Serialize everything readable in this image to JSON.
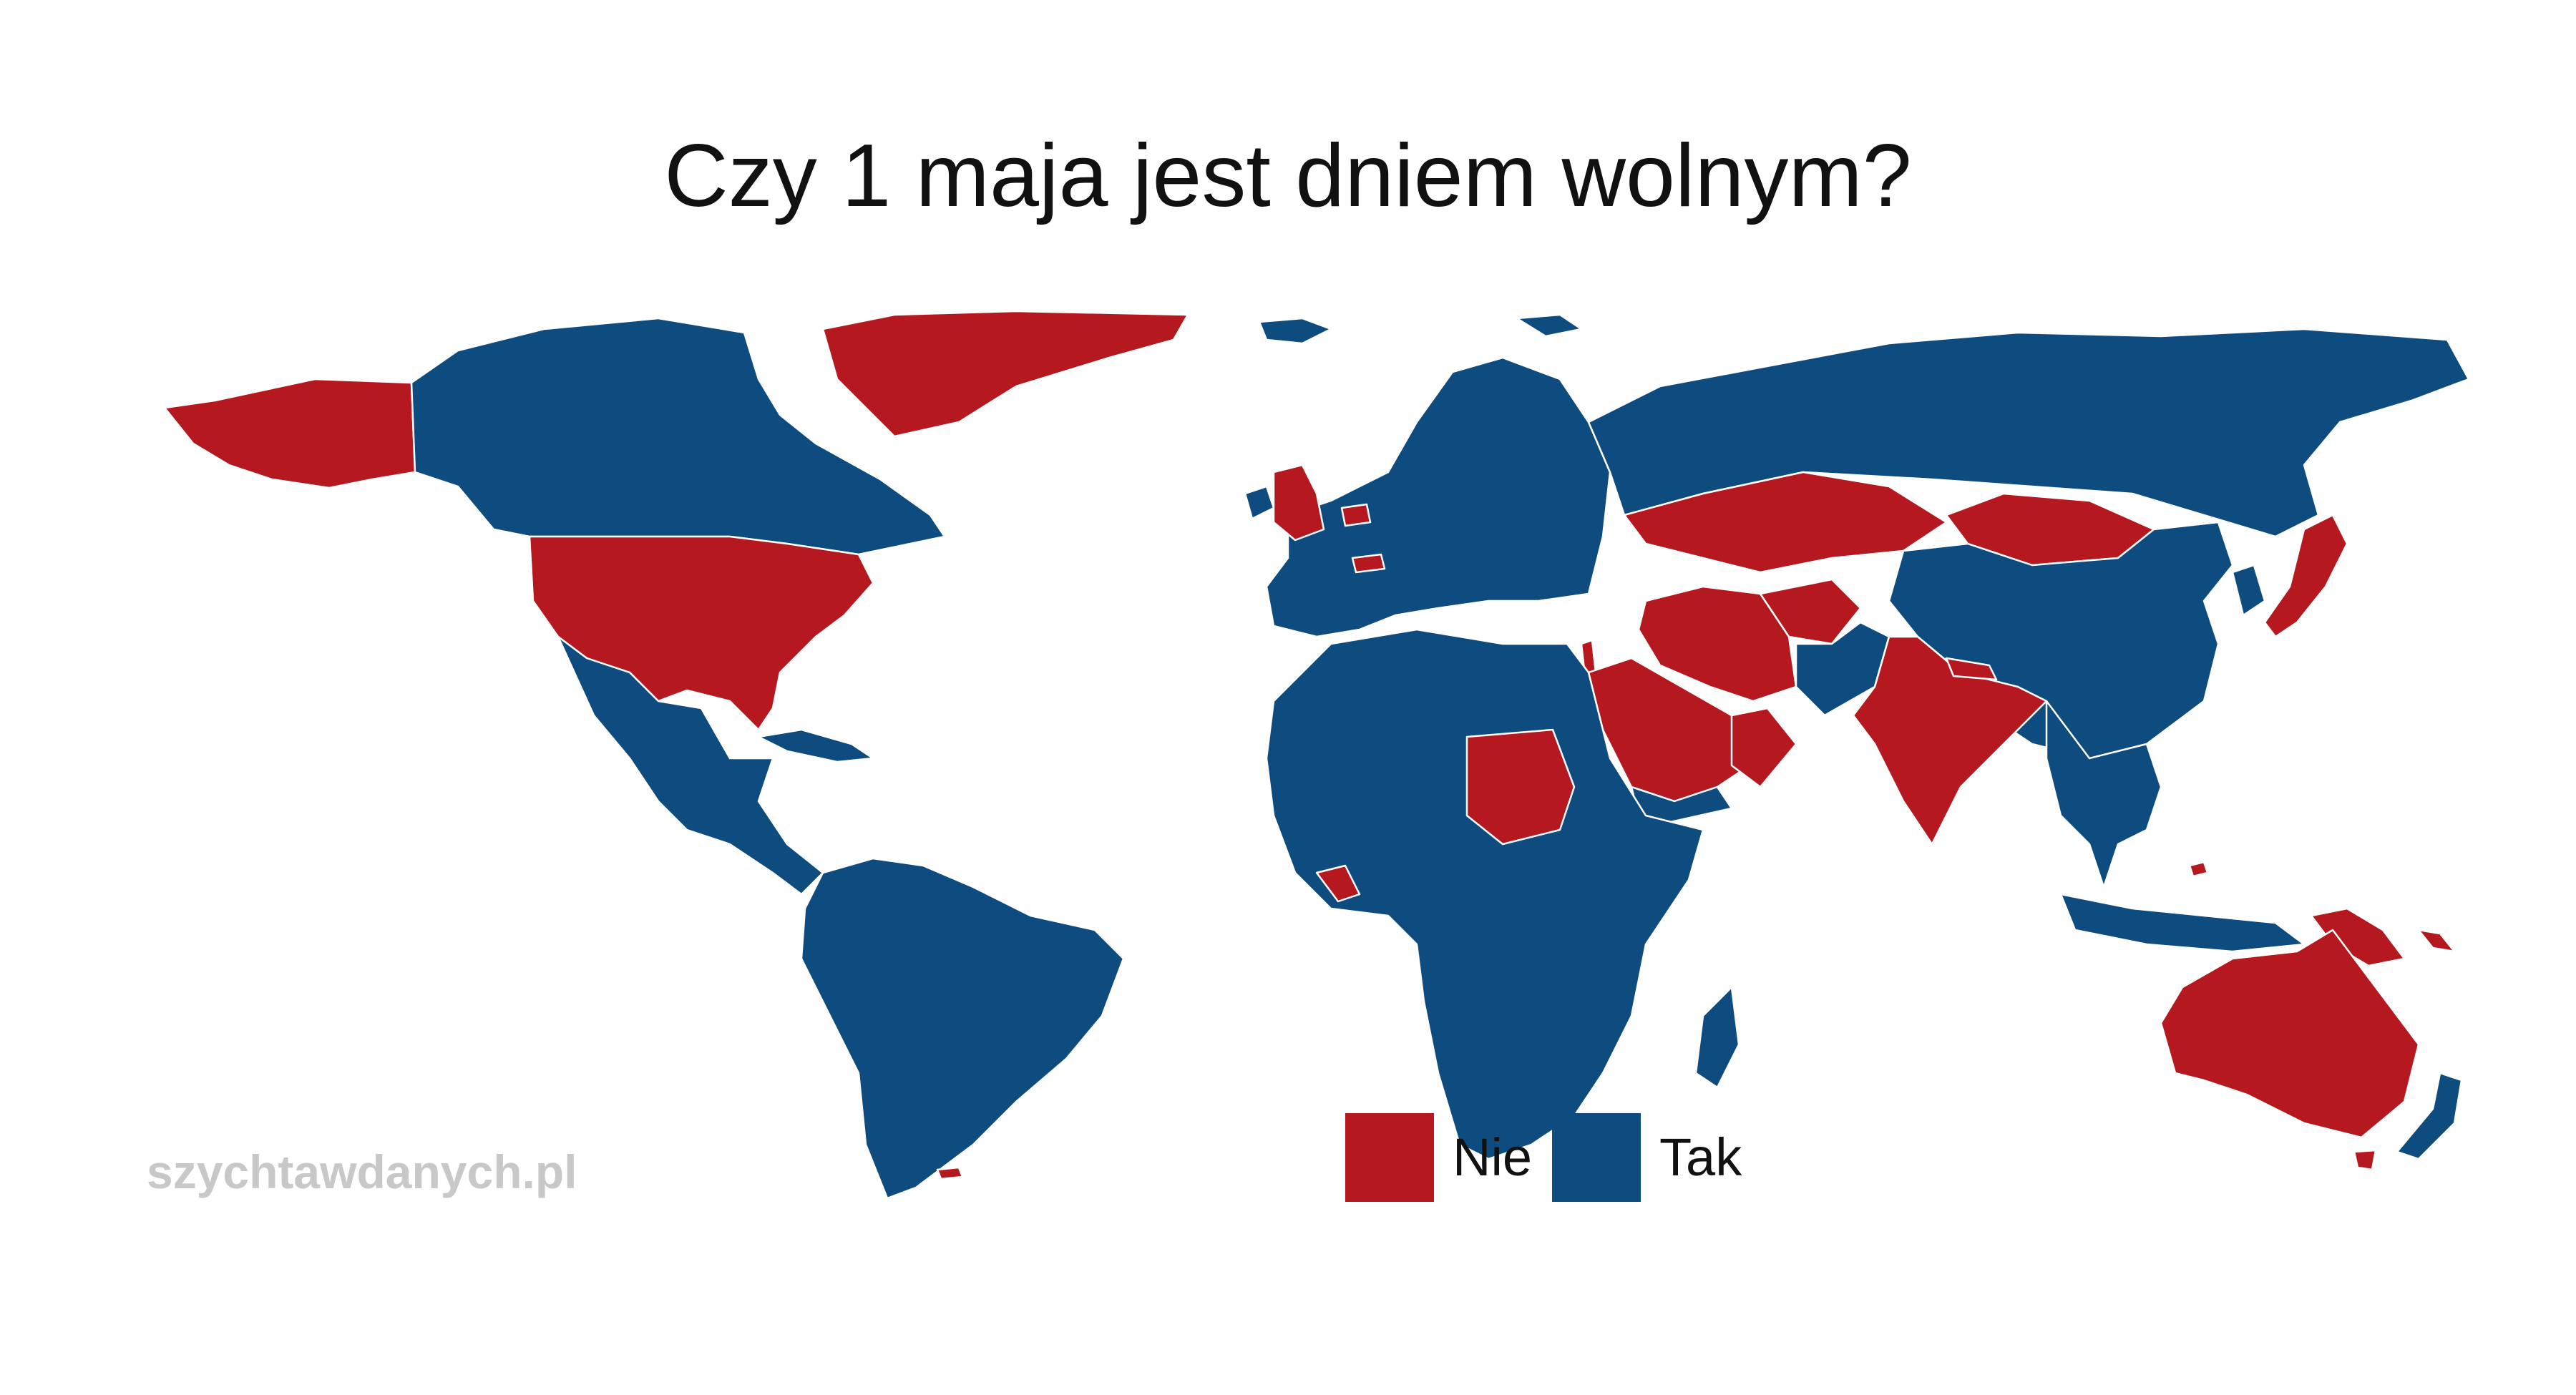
{
  "title": "Czy 1 maja jest dniem wolnym?",
  "watermark": "szychtawdanych.pl",
  "colors": {
    "nie": "#b5191f",
    "tak": "#0e4c7f"
  },
  "legend": [
    {
      "key": "nie",
      "label": "Nie"
    },
    {
      "key": "tak",
      "label": "Tak"
    }
  ],
  "regions": [
    {
      "name": "Alaska (USA)",
      "value": "nie"
    },
    {
      "name": "Canada",
      "value": "tak"
    },
    {
      "name": "Greenland",
      "value": "nie"
    },
    {
      "name": "United States",
      "value": "nie"
    },
    {
      "name": "Mexico and Central America",
      "value": "tak"
    },
    {
      "name": "Cuba",
      "value": "tak"
    },
    {
      "name": "South America",
      "value": "tak"
    },
    {
      "name": "Falkland Islands",
      "value": "nie"
    },
    {
      "name": "Iceland",
      "value": "tak"
    },
    {
      "name": "Svalbard",
      "value": "tak"
    },
    {
      "name": "United Kingdom",
      "value": "nie"
    },
    {
      "name": "Ireland",
      "value": "tak"
    },
    {
      "name": "Netherlands",
      "value": "nie"
    },
    {
      "name": "Switzerland",
      "value": "nie"
    },
    {
      "name": "Europe",
      "value": "tak"
    },
    {
      "name": "Russia",
      "value": "tak"
    },
    {
      "name": "Kazakhstan",
      "value": "nie"
    },
    {
      "name": "Mongolia",
      "value": "nie"
    },
    {
      "name": "Iran",
      "value": "nie"
    },
    {
      "name": "Afghanistan",
      "value": "nie"
    },
    {
      "name": "Saudi Arabia",
      "value": "nie"
    },
    {
      "name": "Oman",
      "value": "nie"
    },
    {
      "name": "Israel",
      "value": "nie"
    },
    {
      "name": "Yemen",
      "value": "tak"
    },
    {
      "name": "India",
      "value": "nie"
    },
    {
      "name": "Nepal",
      "value": "nie"
    },
    {
      "name": "Pakistan",
      "value": "tak"
    },
    {
      "name": "China",
      "value": "tak"
    },
    {
      "name": "Korea",
      "value": "tak"
    },
    {
      "name": "Japan",
      "value": "nie"
    },
    {
      "name": "Southeast Asia",
      "value": "tak"
    },
    {
      "name": "Indonesia",
      "value": "tak"
    },
    {
      "name": "Brunei",
      "value": "nie"
    },
    {
      "name": "Papua New Guinea",
      "value": "nie"
    },
    {
      "name": "Solomon Islands",
      "value": "nie"
    },
    {
      "name": "Australia",
      "value": "nie"
    },
    {
      "name": "Tasmania",
      "value": "nie"
    },
    {
      "name": "New Zealand",
      "value": "tak"
    },
    {
      "name": "Africa",
      "value": "tak"
    },
    {
      "name": "Sudan",
      "value": "nie"
    },
    {
      "name": "Liberia",
      "value": "nie"
    },
    {
      "name": "Madagascar",
      "value": "tak"
    }
  ]
}
